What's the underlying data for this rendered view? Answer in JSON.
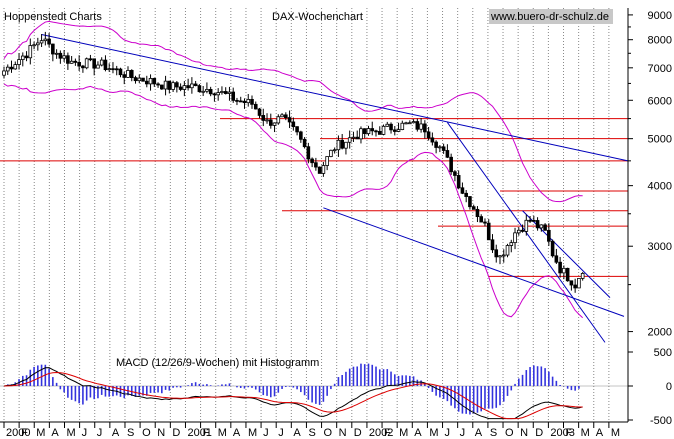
{
  "chart_data": {
    "type": "candlestick",
    "source_label": "Hoppenstedt Charts",
    "title": "DAX-Wochenchart",
    "website": "www.buero-dr-schulz.de",
    "scale": "log",
    "ylim": [
      1850,
      9300
    ],
    "y_ticks": [
      9000,
      8000,
      7000,
      6000,
      5000,
      4000,
      3000,
      2000
    ],
    "x_tick_labels": [
      "2000",
      "F",
      "M",
      "A",
      "M",
      "J",
      "J",
      "A",
      "S",
      "O",
      "N",
      "D",
      "2001",
      "F",
      "M",
      "A",
      "M",
      "J",
      "J",
      "A",
      "S",
      "O",
      "N",
      "D",
      "2002",
      "F",
      "M",
      "A",
      "M",
      "J",
      "J",
      "A",
      "S",
      "O",
      "N",
      "D",
      "2003",
      "F",
      "M",
      "A",
      "M"
    ],
    "price_series": {
      "name": "DAX weekly",
      "approx_path": [
        [
          0,
          6900
        ],
        [
          6,
          7500
        ],
        [
          10,
          8050
        ],
        [
          14,
          7500
        ],
        [
          18,
          7200
        ],
        [
          26,
          7100
        ],
        [
          34,
          6700
        ],
        [
          38,
          6600
        ],
        [
          44,
          6400
        ],
        [
          50,
          6400
        ],
        [
          56,
          6300
        ],
        [
          62,
          6000
        ],
        [
          66,
          5900
        ],
        [
          70,
          5400
        ],
        [
          74,
          5500
        ],
        [
          78,
          5100
        ],
        [
          82,
          4500
        ],
        [
          84,
          4300
        ],
        [
          88,
          4800
        ],
        [
          94,
          5100
        ],
        [
          100,
          5200
        ],
        [
          104,
          5300
        ],
        [
          108,
          5350
        ],
        [
          112,
          5250
        ],
        [
          116,
          4800
        ],
        [
          118,
          4500
        ],
        [
          122,
          3900
        ],
        [
          126,
          3500
        ],
        [
          128,
          3300
        ],
        [
          130,
          3000
        ],
        [
          132,
          2850
        ],
        [
          136,
          3200
        ],
        [
          140,
          3400
        ],
        [
          144,
          3200
        ],
        [
          146,
          2900
        ],
        [
          148,
          2700
        ],
        [
          152,
          2500
        ],
        [
          154,
          2700
        ]
      ]
    },
    "horizontal_support_lines": [
      5500,
      5000,
      4500,
      3900,
      3550,
      3300,
      2600
    ],
    "trend_lines_count": 4,
    "bollinger_bands": true,
    "macd": {
      "label": "MACD (12/26/9-Wochen) mit Histogramm",
      "ylim": [
        -500,
        500
      ],
      "y_ticks": [
        500,
        0,
        -500
      ],
      "y_tick_labels": [
        "500",
        "0",
        "-500"
      ]
    },
    "colors": {
      "candles": "#000000",
      "support_lines": "#dd0000",
      "trend_lines": "#0000bb",
      "bollinger": "#cc00cc",
      "histogram": "#3333dd",
      "macd_line": "#000000",
      "signal_line": "#dd0000",
      "grid": "#888888"
    }
  }
}
